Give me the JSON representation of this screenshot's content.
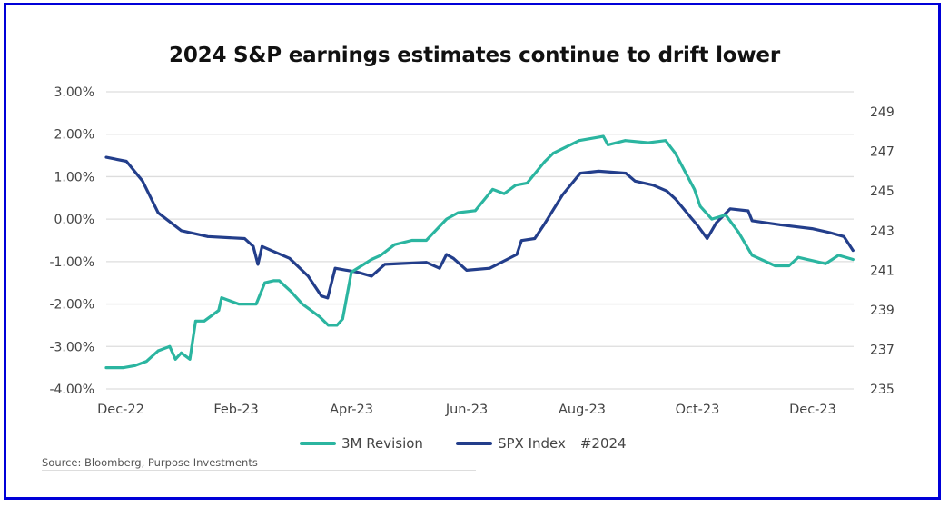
{
  "chart_data": {
    "type": "line",
    "title": "2024 S&P earnings estimates continue to drift lower",
    "xlabel": "",
    "ylabel_left": "",
    "ylabel_right": "",
    "x_unit": "months since Dec-22",
    "x_ticks": [
      {
        "label": "Dec-22",
        "x": 0
      },
      {
        "label": "Feb-23",
        "x": 2
      },
      {
        "label": "Apr-23",
        "x": 4
      },
      {
        "label": "Jun-23",
        "x": 6
      },
      {
        "label": "Aug-23",
        "x": 8
      },
      {
        "label": "Oct-23",
        "x": 10
      },
      {
        "label": "Dec-23",
        "x": 12
      }
    ],
    "xlim": [
      0,
      12.95
    ],
    "y_left": {
      "ylim": [
        -4,
        3
      ],
      "ticks": [
        3,
        2,
        1,
        0,
        -1,
        -2,
        -3,
        -4
      ],
      "tick_labels": [
        "3.00%",
        "2.00%",
        "1.00%",
        "0.00%",
        "-1.00%",
        "-2.00%",
        "-3.00%",
        "-4.00%"
      ]
    },
    "y_right": {
      "ylim": [
        235,
        250
      ],
      "ticks": [
        249,
        247,
        245,
        243,
        241,
        239,
        237,
        235
      ],
      "tick_labels": [
        "249",
        "247",
        "245",
        "243",
        "241",
        "239",
        "237",
        "235"
      ]
    },
    "grid": true,
    "legend_position": "bottom-center",
    "series": [
      {
        "name": "3M Revision",
        "axis": "left",
        "color": "#2bb5a0",
        "x": [
          0,
          0.3,
          0.5,
          0.7,
          0.9,
          1.1,
          1.2,
          1.3,
          1.45,
          1.55,
          1.7,
          1.95,
          2.0,
          2.3,
          2.6,
          2.75,
          2.9,
          3.0,
          3.2,
          3.4,
          3.5,
          3.7,
          3.85,
          4.0,
          4.1,
          4.25,
          4.6,
          4.76,
          5.0,
          5.3,
          5.55,
          5.9,
          6.1,
          6.4,
          6.7,
          6.9,
          7.1,
          7.3,
          7.6,
          7.75,
          8.2,
          8.62,
          8.7,
          9.0,
          9.4,
          9.7,
          9.87,
          10.2,
          10.3,
          10.5,
          10.74,
          10.96,
          11.2,
          11.6,
          11.84,
          12.0,
          12.475,
          12.7,
          12.95
        ],
        "values": [
          -3.5,
          -3.5,
          -3.45,
          -3.35,
          -3.1,
          -3.0,
          -3.3,
          -3.15,
          -3.3,
          -2.4,
          -2.4,
          -2.15,
          -1.85,
          -2.0,
          -2.0,
          -1.5,
          -1.45,
          -1.45,
          -1.7,
          -2.0,
          -2.1,
          -2.3,
          -2.5,
          -2.5,
          -2.35,
          -1.25,
          -0.95,
          -0.85,
          -0.6,
          -0.5,
          -0.5,
          0.0,
          0.15,
          0.2,
          0.7,
          0.6,
          0.8,
          0.85,
          1.35,
          1.55,
          1.85,
          1.95,
          1.75,
          1.85,
          1.8,
          1.85,
          1.55,
          0.7,
          0.3,
          0.0,
          0.1,
          -0.3,
          -0.85,
          -1.1,
          -1.1,
          -0.9,
          -1.05,
          -0.85,
          -0.95
        ]
      },
      {
        "name": "SPX Index",
        "axis": "right",
        "color": "#233e8b",
        "x": [
          0,
          0.35,
          0.63,
          0.9,
          1.3,
          1.76,
          2.4,
          2.55,
          2.63,
          2.7,
          3.18,
          3.5,
          3.73,
          3.84,
          3.97,
          4.36,
          4.6,
          4.83,
          5.55,
          5.78,
          5.9,
          6.02,
          6.25,
          6.65,
          7.12,
          7.2,
          7.43,
          7.59,
          7.91,
          8.22,
          8.54,
          9.01,
          9.17,
          9.48,
          9.72,
          9.87,
          10.27,
          10.42,
          10.58,
          10.82,
          11.13,
          11.2,
          11.68,
          12.24,
          12.55,
          12.79,
          12.95
        ],
        "values": [
          246.7,
          246.5,
          245.5,
          243.9,
          243.0,
          242.7,
          242.6,
          242.2,
          241.3,
          242.2,
          241.6,
          240.7,
          239.7,
          239.6,
          241.1,
          240.9,
          240.7,
          241.3,
          241.4,
          241.1,
          241.8,
          241.6,
          241.0,
          241.1,
          241.8,
          242.5,
          242.6,
          243.3,
          244.8,
          245.9,
          246.0,
          245.9,
          245.5,
          245.3,
          245.0,
          244.6,
          243.2,
          242.6,
          243.4,
          244.1,
          244.0,
          243.5,
          243.3,
          243.1,
          242.9,
          242.7,
          242.0
        ]
      }
    ],
    "legend_extra": "#2024",
    "source": "Source: Bloomberg, Purpose Investments"
  }
}
